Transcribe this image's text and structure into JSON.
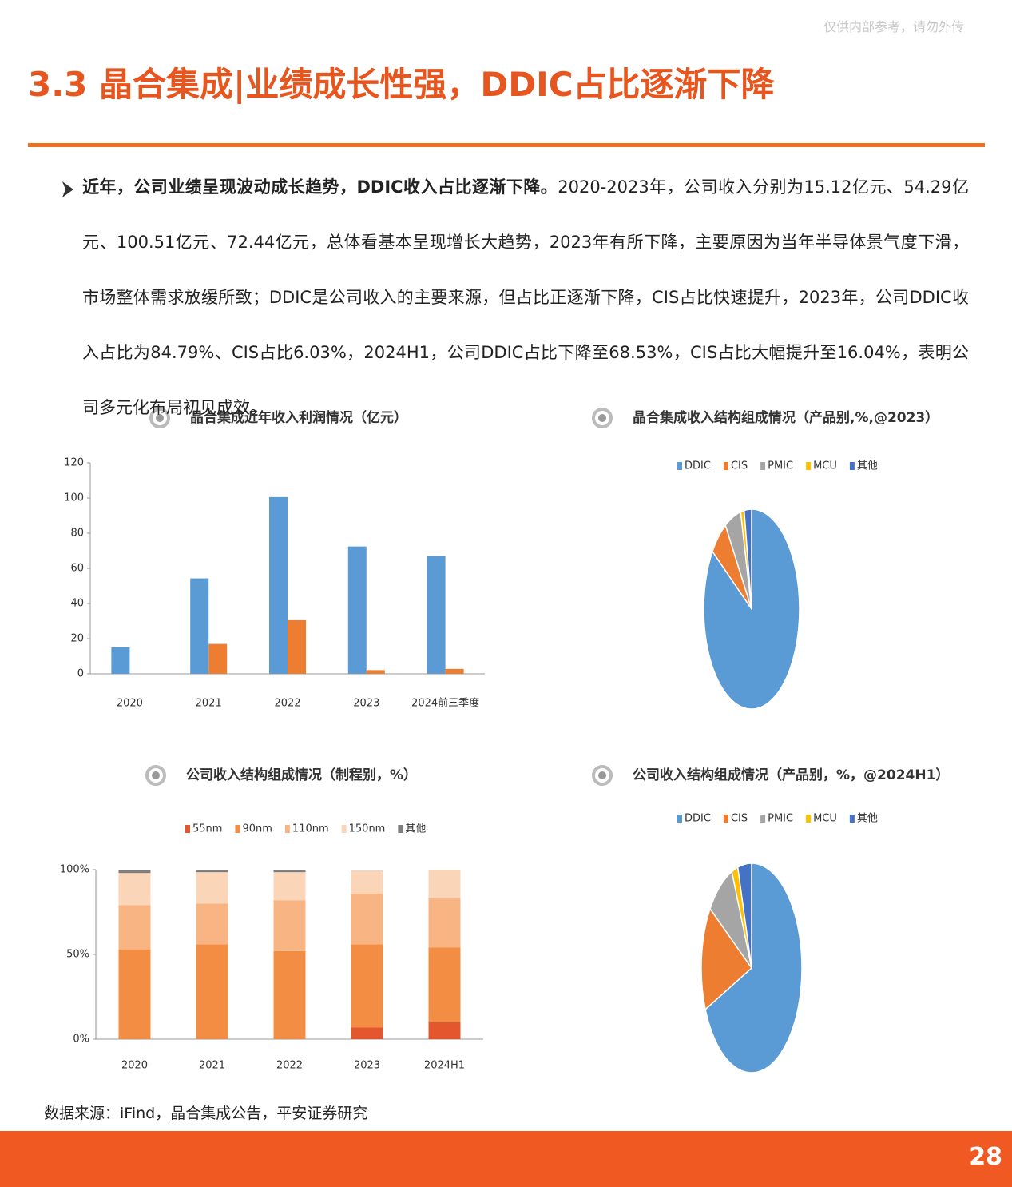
{
  "watermark": "仅供内部参考，请勿外传",
  "header": {
    "title": "3.3 晶合集成|业绩成长性强，DDIC占比逐渐下降"
  },
  "bullet": {
    "lead": "近年，公司业绩呈现波动成长趋势，DDIC收入占比逐渐下降。",
    "text": "2020-2023年，公司收入分别为15.12亿元、54.29亿元、100.51亿元、72.44亿元，总体看基本呈现增长大趋势，2023年有所下降，主要原因为当年半导体景气度下滑，市场整体需求放缓所致；DDIC是公司收入的主要来源，但占比正逐渐下降，CIS占比快速提升，2023年，公司DDIC收入占比为84.79%、CIS占比6.03%，2024H1，公司DDIC占比下降至68.53%，CIS占比大幅提升至16.04%，表明公司多元化布局初见成效。"
  },
  "chart_data": [
    {
      "type": "bar",
      "title": "晶合集成近年收入利润情况（亿元）",
      "categories": [
        "2020",
        "2021",
        "2022",
        "2023",
        "2024前三季度"
      ],
      "series": [
        {
          "color": "#5b9bd5",
          "values": [
            15.12,
            54.29,
            100.51,
            72.44,
            67
          ]
        },
        {
          "color": "#ed7d31",
          "values": [
            0,
            17,
            30.5,
            2.1,
            2.8
          ]
        }
      ],
      "ylim": [
        0,
        120
      ],
      "yticks": [
        0,
        20,
        40,
        60,
        80,
        100,
        120
      ]
    },
    {
      "type": "pie",
      "title": "晶合集成收入结构组成情况（产品别,%,@2023）",
      "categories": [
        "DDIC",
        "CIS",
        "PMIC",
        "MCU",
        "其他"
      ],
      "values": [
        84.79,
        6.03,
        5.5,
        1.2,
        2.48
      ],
      "colors": [
        "#5b9bd5",
        "#ed7d31",
        "#a5a5a5",
        "#ffc000",
        "#4472c4"
      ]
    },
    {
      "type": "stacked_bar",
      "title": "公司收入结构组成情况（制程别，%）",
      "categories": [
        "2020",
        "2021",
        "2022",
        "2023",
        "2024H1"
      ],
      "series": [
        {
          "name": "55nm",
          "color": "#e4572e",
          "values": [
            0,
            0,
            0,
            7,
            10
          ]
        },
        {
          "name": "90nm",
          "color": "#f38d44",
          "values": [
            53,
            56,
            52,
            49,
            44
          ]
        },
        {
          "name": "110nm",
          "color": "#f8b483",
          "values": [
            26,
            24,
            30,
            30,
            29
          ]
        },
        {
          "name": "150nm",
          "color": "#fbd5b8",
          "values": [
            19,
            18.5,
            16.5,
            13.5,
            17
          ]
        },
        {
          "name": "其他",
          "color": "#7f7f7f",
          "values": [
            2,
            1.5,
            1.5,
            0.5,
            0
          ]
        }
      ],
      "ylim": [
        0,
        100
      ],
      "yticks": [
        {
          "value": 0,
          "label": "0%"
        },
        {
          "value": 50,
          "label": "50%"
        },
        {
          "value": 100,
          "label": "100%"
        }
      ]
    },
    {
      "type": "pie",
      "title": "公司收入结构组成情况（产品别，%，@2024H1）",
      "categories": [
        "DDIC",
        "CIS",
        "PMIC",
        "MCU",
        "其他"
      ],
      "values": [
        68.53,
        16.04,
        9,
        2,
        4.43
      ],
      "colors": [
        "#5b9bd5",
        "#ed7d31",
        "#a5a5a5",
        "#ffc000",
        "#4472c4"
      ]
    }
  ],
  "source": "数据来源：iFind，晶合集成公告，平安证券研究",
  "page_number": "28"
}
